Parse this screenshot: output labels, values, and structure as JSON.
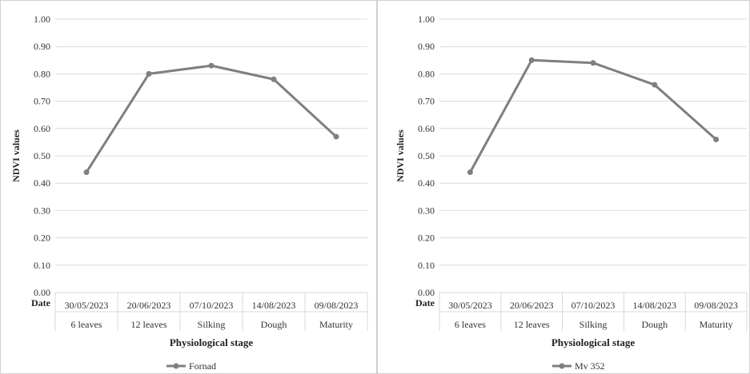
{
  "chart_data": [
    {
      "type": "line",
      "title": "",
      "ylabel": "NDVI values",
      "xlabel": "Physiological stage",
      "ylim": [
        0,
        1.0
      ],
      "y_ticks": [
        "0.00",
        "0.10",
        "0.20",
        "0.30",
        "0.40",
        "0.50",
        "0.60",
        "0.70",
        "0.80",
        "0.90",
        "1.00"
      ],
      "grid": true,
      "row_header": "Date",
      "dates": [
        "30/05/2023",
        "20/06/2023",
        "07/10/2023",
        "14/08/2023",
        "09/08/2023"
      ],
      "stages": [
        "6 leaves",
        "12 leaves",
        "Silking",
        "Dough",
        "Maturity"
      ],
      "series": [
        {
          "name": "Fornad",
          "values": [
            0.44,
            0.8,
            0.83,
            0.78,
            0.57
          ],
          "color": "#7f7f7f"
        }
      ],
      "legend": "bottom"
    },
    {
      "type": "line",
      "title": "",
      "ylabel": "NDVI values",
      "xlabel": "Physiological stage",
      "ylim": [
        0,
        1.0
      ],
      "y_ticks": [
        "0.00",
        "0.10",
        "0.20",
        "0.30",
        "0.40",
        "0.50",
        "0.60",
        "0.70",
        "0.80",
        "0.90",
        "1.00"
      ],
      "grid": true,
      "row_header": "Date",
      "dates": [
        "30/05/2023",
        "20/06/2023",
        "07/10/2023",
        "14/08/2023",
        "09/08/2023"
      ],
      "stages": [
        "6 leaves",
        "12 leaves",
        "Silking",
        "Dough",
        "Maturity"
      ],
      "series": [
        {
          "name": "Mv 352",
          "values": [
            0.44,
            0.85,
            0.84,
            0.76,
            0.56
          ],
          "color": "#7f7f7f"
        }
      ],
      "legend": "bottom"
    }
  ]
}
